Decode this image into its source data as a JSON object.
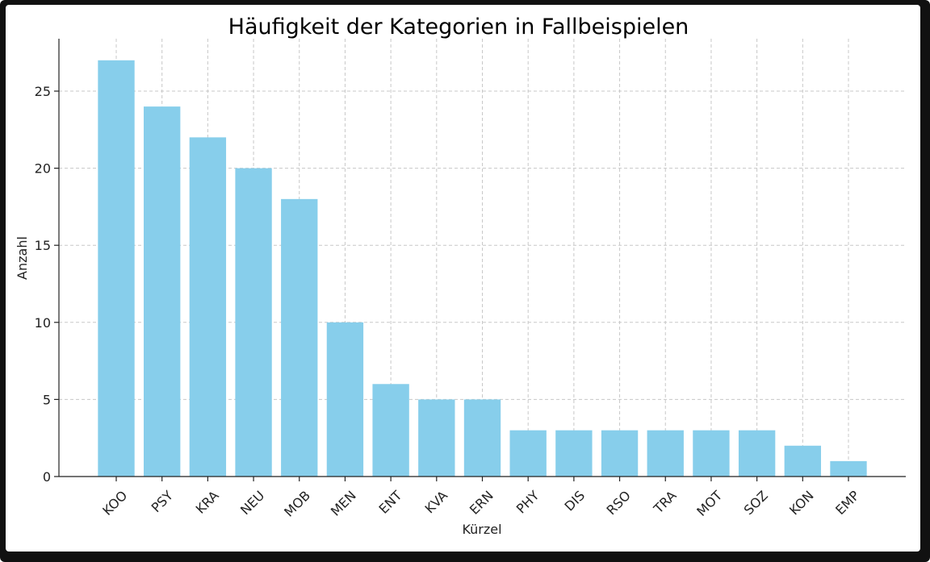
{
  "chart_data": {
    "type": "bar",
    "title": "Häufigkeit der Kategorien in Fallbeispielen",
    "xlabel": "Kürzel",
    "ylabel": "Anzahl",
    "categories": [
      "KOO",
      "PSY",
      "KRA",
      "NEU",
      "MOB",
      "MEN",
      "ENT",
      "KVA",
      "ERN",
      "PHY",
      "DIS",
      "RSO",
      "TRA",
      "MOT",
      "SOZ",
      "KON",
      "EMP"
    ],
    "values": [
      27,
      24,
      22,
      20,
      18,
      10,
      6,
      5,
      5,
      3,
      3,
      3,
      3,
      3,
      3,
      2,
      1
    ],
    "yticks": [
      0,
      5,
      10,
      15,
      20,
      25
    ],
    "ylim": [
      0,
      28.4
    ],
    "grid": true,
    "bar_color": "#87CEEB"
  }
}
